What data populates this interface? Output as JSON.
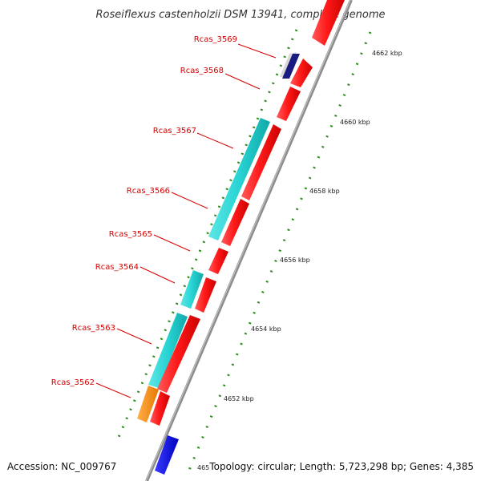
{
  "title": "Roseiflexus castenholzii DSM 13941, complete genome",
  "accession": "Accession: NC_009767",
  "topology": "Topology: circular; Length: 5,723,298 bp; Genes: 4,385",
  "colors": {
    "background": "#ffffff",
    "backbone": "#8c8c8c",
    "cds_forward": "#ff0000",
    "cds_reverse": "#27d3d3",
    "orange_feature": "#ff8c00",
    "blue_feature": "#0000ee",
    "navy_feature": "#1a1a80",
    "gc_tick": "#2e8b1e",
    "label": "#d40000"
  },
  "scale_ticks": [
    "4662 kbp",
    "4660 kbp",
    "4658 kbp",
    "4656 kbp",
    "4654 kbp",
    "4652 kbp",
    "465"
  ],
  "gene_labels": [
    "Rcas_3569",
    "Rcas_3568",
    "Rcas_3567",
    "Rcas_3566",
    "Rcas_3565",
    "Rcas_3564",
    "Rcas_3563",
    "Rcas_3562"
  ]
}
